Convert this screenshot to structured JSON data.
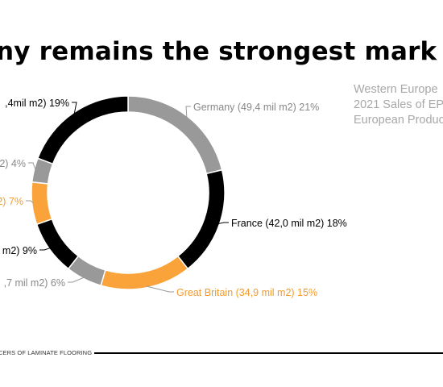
{
  "header": {
    "title": "ny remains the strongest mark",
    "subtitle_lines": [
      "Western Europe",
      "2021 Sales of EP",
      "European Produc"
    ]
  },
  "footer": {
    "text": "CERS OF LAMINATE FLOORING"
  },
  "colors": {
    "black": "#000000",
    "gray": "#999999",
    "orange": "#f9a33a",
    "label_orange": "#f49b2e"
  },
  "chart_data": {
    "type": "pie",
    "donut": true,
    "slices": [
      {
        "label": "Germany (49,4 mil m2) 21%",
        "value": 21,
        "color": "#999999"
      },
      {
        "label": "France (42,0 mil m2) 18%",
        "value": 18,
        "color": "#000000"
      },
      {
        "label": "Great Britain (34,9 mil m2) 15%",
        "value": 15,
        "color": "#f9a33a"
      },
      {
        "label": ",7 mil m2) 6%",
        "value": 6,
        "color": "#999999"
      },
      {
        "label": "m2) 9%",
        "value": 9,
        "color": "#000000"
      },
      {
        "label": "2) 7%",
        "value": 7,
        "color": "#f9a33a"
      },
      {
        "label": "2) 4%",
        "value": 4,
        "color": "#999999"
      },
      {
        "label": ",4mil m2) 19%",
        "value": 19,
        "color": "#000000"
      }
    ]
  }
}
